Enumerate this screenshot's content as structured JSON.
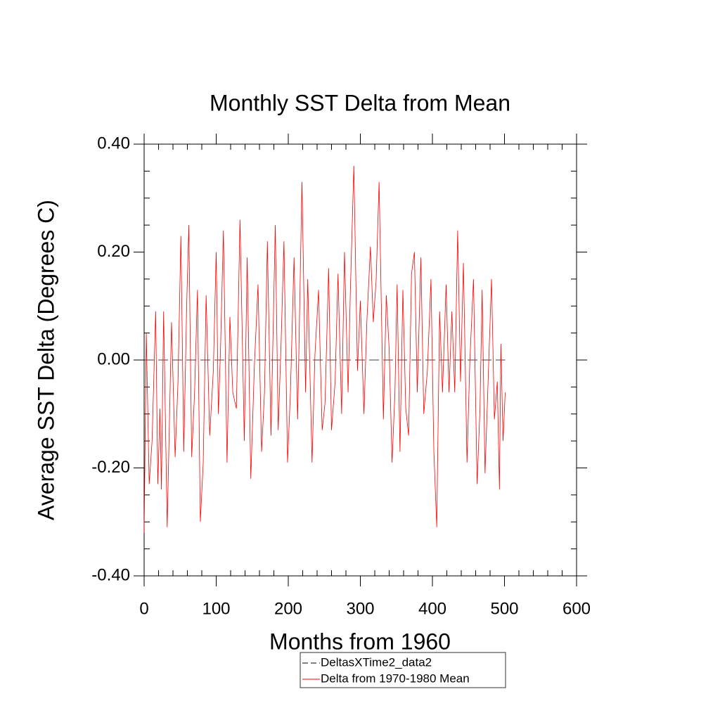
{
  "chart_data": {
    "type": "line",
    "title": "Monthly SST Delta from Mean",
    "x_label": "Months from 1960",
    "y_label": "Average SST Delta (Degrees C)",
    "xlim": [
      0,
      600
    ],
    "xticks": [
      0,
      100,
      200,
      300,
      400,
      500,
      600
    ],
    "ylim": [
      -0.4,
      0.4
    ],
    "yticks": [
      {
        "value": -0.4,
        "label": "-0.40"
      },
      {
        "value": -0.2,
        "label": "-0.20"
      },
      {
        "value": 0,
        "label": "0.00"
      },
      {
        "value": 0.2,
        "label": "0.20"
      },
      {
        "value": 0.4,
        "label": "0.40"
      }
    ],
    "grid": false,
    "series": [
      {
        "name": "DeltasXTime2_data2",
        "color": "#000000",
        "line_style": "dashed",
        "x": [
          0,
          501
        ],
        "values": [
          0,
          0
        ]
      },
      {
        "name": "Delta from 1970-1980 Mean",
        "color": "#ff0000",
        "line_style": "solid",
        "x": [
          0,
          3,
          7,
          11,
          16,
          19,
          22,
          24,
          27,
          32,
          38,
          43,
          47,
          51,
          55,
          59,
          62,
          66,
          70,
          74,
          78,
          82,
          86,
          91,
          96,
          100,
          103,
          106,
          110,
          115,
          119,
          123,
          128,
          133,
          139,
          143,
          148,
          153,
          158,
          163,
          167,
          171,
          176,
          182,
          186,
          190,
          194,
          199,
          203,
          208,
          213,
          219,
          224,
          227,
          233,
          237,
          242,
          247,
          251,
          256,
          260,
          265,
          269,
          274,
          278,
          283,
          286,
          291,
          296,
          300,
          305,
          309,
          314,
          318,
          322,
          326,
          332,
          336,
          340,
          344,
          348,
          351,
          355,
          359,
          363,
          367,
          371,
          375,
          379,
          384,
          388,
          393,
          398,
          402,
          406,
          410,
          414,
          419,
          423,
          427,
          431,
          435,
          439,
          443,
          448,
          452,
          457,
          462,
          466,
          469,
          473,
          478,
          482,
          486,
          490,
          493,
          495,
          498,
          501
        ],
        "values": [
          -0.32,
          0.05,
          -0.23,
          -0.15,
          0.09,
          -0.23,
          -0.09,
          -0.24,
          0.09,
          -0.31,
          0.07,
          -0.18,
          -0.04,
          0.23,
          -0.17,
          0.1,
          0.25,
          -0.18,
          -0.06,
          0.13,
          -0.3,
          -0.19,
          0.12,
          -0.14,
          -0.02,
          0.2,
          -0.1,
          0.02,
          0.24,
          -0.19,
          0.08,
          -0.06,
          -0.09,
          0.26,
          -0.15,
          0.19,
          -0.22,
          -0.01,
          0.14,
          -0.17,
          -0.06,
          0.22,
          -0.14,
          0.25,
          -0.13,
          0.03,
          0.22,
          -0.19,
          -0.06,
          0.19,
          -0.11,
          0.33,
          -0.06,
          0.15,
          -0.19,
          0.01,
          0.13,
          -0.13,
          -0.08,
          0.17,
          -0.13,
          -0.04,
          0.16,
          -0.1,
          0.2,
          -0.06,
          0.12,
          0.36,
          -0.02,
          0.11,
          -0.1,
          0.07,
          0.21,
          0.07,
          0.15,
          0.33,
          -0.11,
          0.12,
          0.02,
          -0.19,
          -0.06,
          0.14,
          -0.17,
          0.13,
          -0.09,
          -0.14,
          0.16,
          0.2,
          -0.06,
          0.19,
          -0.1,
          -0.02,
          0.15,
          -0.17,
          -0.31,
          0.09,
          -0.06,
          0.14,
          -0.06,
          0.09,
          -0.06,
          0.24,
          -0.04,
          0.18,
          -0.19,
          0.0,
          0.15,
          -0.23,
          -0.09,
          0.13,
          -0.21,
          -0.01,
          0.15,
          -0.11,
          -0.04,
          -0.24,
          0.03,
          -0.15,
          -0.06
        ]
      }
    ]
  }
}
